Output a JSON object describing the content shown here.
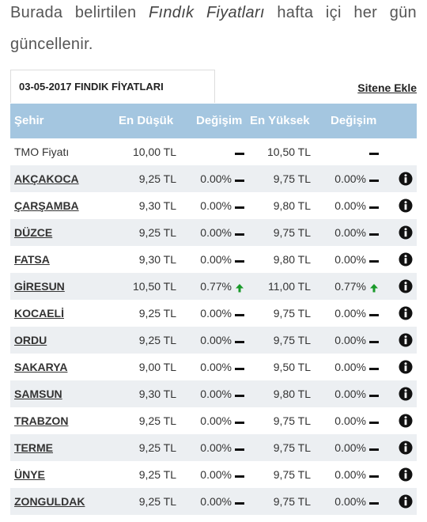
{
  "intro": {
    "text_before": "Burada belirtilen",
    "emphasis": "Fındık Fiyatları",
    "text_after": "hafta içi her gün güncellenir."
  },
  "tab": {
    "title": "03-05-2017 FINDIK FİYATLARI",
    "link": "Sitene Ekle"
  },
  "table": {
    "columns": [
      "Şehir",
      "En Düşük",
      "Değişim",
      "En Yüksek",
      "Değişim"
    ],
    "rows": [
      {
        "city": "TMO Fiyatı",
        "low": "10,00 TL",
        "high": "10,50 TL"
      },
      {
        "city": "AKÇAKOCA",
        "low": "9,25 TL",
        "low_change": "0.00%",
        "high": "9,75 TL",
        "high_change": "0.00%"
      },
      {
        "city": "ÇARŞAMBA",
        "low": "9,30 TL",
        "low_change": "0.00%",
        "high": "9,80 TL",
        "high_change": "0.00%"
      },
      {
        "city": "DÜZCE",
        "low": "9,25 TL",
        "low_change": "0.00%",
        "high": "9,75 TL",
        "high_change": "0.00%"
      },
      {
        "city": "FATSA",
        "low": "9,30 TL",
        "low_change": "0.00%",
        "high": "9,80 TL",
        "high_change": "0.00%"
      },
      {
        "city": "GİRESUN",
        "low": "10,50 TL",
        "low_change": "0.77%",
        "high": "11,00 TL",
        "high_change": "0.77%"
      },
      {
        "city": "KOCAELİ",
        "low": "9,25 TL",
        "low_change": "0.00%",
        "high": "9,75 TL",
        "high_change": "0.00%"
      },
      {
        "city": "ORDU",
        "low": "9,25 TL",
        "low_change": "0.00%",
        "high": "9,75 TL",
        "high_change": "0.00%"
      },
      {
        "city": "SAKARYA",
        "low": "9,00 TL",
        "low_change": "0.00%",
        "high": "9,50 TL",
        "high_change": "0.00%"
      },
      {
        "city": "SAMSUN",
        "low": "9,30 TL",
        "low_change": "0.00%",
        "high": "9,80 TL",
        "high_change": "0.00%"
      },
      {
        "city": "TRABZON",
        "low": "9,25 TL",
        "low_change": "0.00%",
        "high": "9,75 TL",
        "high_change": "0.00%"
      },
      {
        "city": "TERME",
        "low": "9,25 TL",
        "low_change": "0.00%",
        "high": "9,75 TL",
        "high_change": "0.00%"
      },
      {
        "city": "ÜNYE",
        "low": "9,25 TL",
        "low_change": "0.00%",
        "high": "9,75 TL",
        "high_change": "0.00%"
      },
      {
        "city": "ZONGULDAK",
        "low": "9,25 TL",
        "low_change": "0.00%",
        "high": "9,75 TL",
        "high_change": "0.00%"
      }
    ]
  }
}
